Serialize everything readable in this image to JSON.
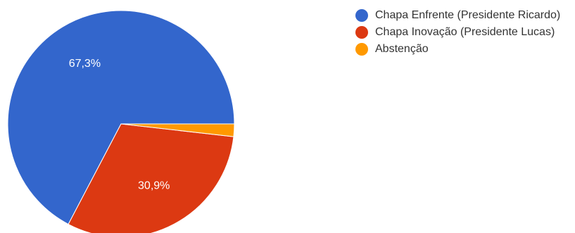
{
  "chart_data": {
    "type": "pie",
    "title": "",
    "slices": [
      {
        "name": "Chapa Enfrente (Presidente Ricardo)",
        "value": 67.3,
        "label": "67,3%",
        "color": "#3366cc"
      },
      {
        "name": "Chapa Inovação (Presidente Lucas)",
        "value": 30.9,
        "label": "30,9%",
        "color": "#dc3912"
      },
      {
        "name": "Abstenção",
        "value": 1.8,
        "label": "",
        "color": "#ff9900"
      }
    ],
    "legend_position": "right"
  }
}
